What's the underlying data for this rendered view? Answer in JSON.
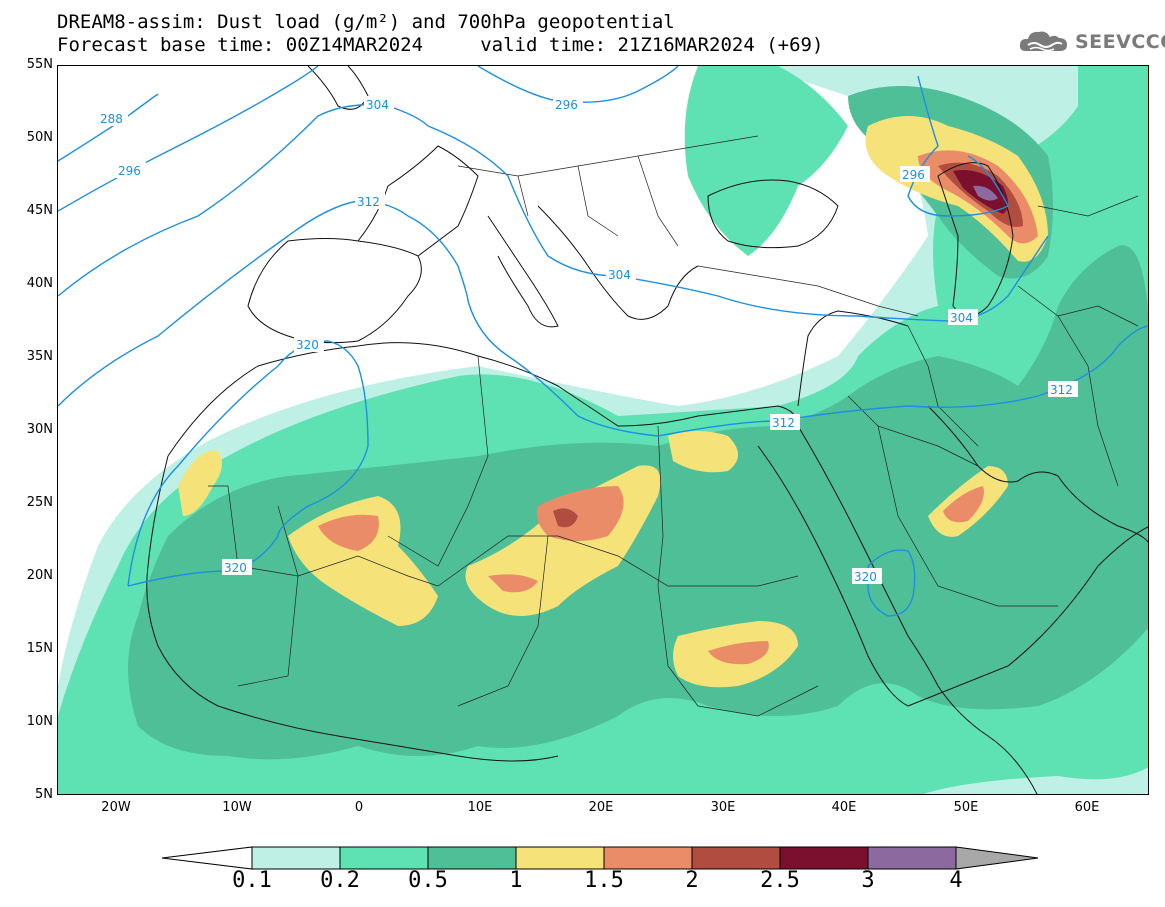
{
  "title": {
    "line1": "DREAM8-assim: Dust load (g/m²) and 700hPa geopotential",
    "line2": "Forecast base time: 00Z14MAR2024     valid time: 21Z16MAR2024 (+69)"
  },
  "logo": {
    "text": "SEEVCCC",
    "icon": "cloud-icon"
  },
  "axes": {
    "lat_labels": [
      "55N",
      "50N",
      "45N",
      "40N",
      "35N",
      "30N",
      "25N",
      "20N",
      "15N",
      "10N",
      "5N"
    ],
    "lon_labels": [
      "20W",
      "10W",
      "0",
      "10E",
      "20E",
      "30E",
      "40E",
      "50E",
      "60E"
    ],
    "lat_range": [
      5,
      55
    ],
    "lon_range": [
      -25,
      65
    ]
  },
  "legend": {
    "labels": [
      "0.1",
      "0.2",
      "0.5",
      "1",
      "1.5",
      "2",
      "2.5",
      "3",
      "4"
    ],
    "colors": {
      "below": "#ffffff",
      "c1": "#bff0e6",
      "c2": "#5ee2b4",
      "c3": "#4fbf98",
      "c4": "#f5e37a",
      "c5": "#ea8c68",
      "c6": "#b04d40",
      "c7": "#7a0f2e",
      "c8": "#8c6aa0",
      "above": "#a8a8a8"
    }
  },
  "contours": {
    "color": "#1d8fe0",
    "labels": [
      "288",
      "296",
      "304",
      "296",
      "312",
      "304",
      "320",
      "296",
      "304",
      "312",
      "312",
      "320",
      "320"
    ]
  }
}
